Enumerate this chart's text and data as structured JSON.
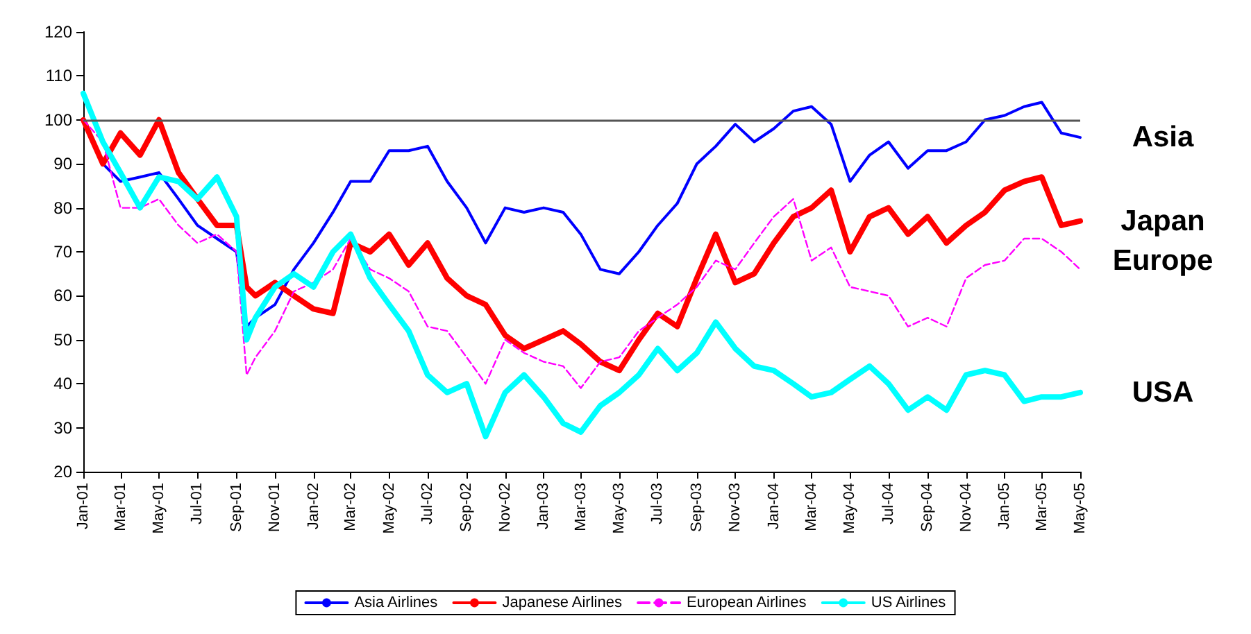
{
  "chart_data": {
    "type": "line",
    "x": [
      "2001-01",
      "2001-02",
      "2001-03",
      "2001-04",
      "2001-05",
      "2001-06",
      "2001-07",
      "2001-08",
      "2001-09",
      "2001-09-17",
      "2001-10",
      "2001-11",
      "2001-12",
      "2002-01",
      "2002-02",
      "2002-03",
      "2002-04",
      "2002-05",
      "2002-06",
      "2002-07",
      "2002-08",
      "2002-09",
      "2002-10",
      "2002-11",
      "2002-12",
      "2003-01",
      "2003-02",
      "2003-03",
      "2003-04",
      "2003-05",
      "2003-06",
      "2003-07",
      "2003-08",
      "2003-09",
      "2003-10",
      "2003-11",
      "2003-12",
      "2004-01",
      "2004-02",
      "2004-03",
      "2004-04",
      "2004-05",
      "2004-06",
      "2004-07",
      "2004-08",
      "2004-09",
      "2004-10",
      "2004-11",
      "2004-12",
      "2005-01",
      "2005-02",
      "2005-03",
      "2005-04",
      "2005-05"
    ],
    "series": [
      {
        "name": "Asia Airlines",
        "color": "#0000ff",
        "values": [
          100,
          90,
          86,
          87,
          88,
          82,
          76,
          73,
          70,
          53,
          55,
          58,
          66,
          72,
          79,
          86,
          86,
          93,
          93,
          94,
          86,
          80,
          72,
          80,
          79,
          80,
          79,
          74,
          66,
          65,
          70,
          76,
          81,
          90,
          94,
          99,
          95,
          98,
          102,
          103,
          99,
          86,
          92,
          95,
          89,
          93,
          93,
          95,
          100,
          101,
          103,
          104,
          97,
          96
        ]
      },
      {
        "name": "Japanese Airlines",
        "color": "#ff0000",
        "values": [
          100,
          90,
          97,
          92,
          100,
          88,
          82,
          76,
          76,
          62,
          60,
          63,
          60,
          57,
          56,
          72,
          70,
          74,
          67,
          72,
          64,
          60,
          58,
          51,
          48,
          50,
          52,
          49,
          45,
          43,
          50,
          56,
          53,
          64,
          74,
          63,
          65,
          72,
          78,
          80,
          84,
          70,
          78,
          80,
          74,
          78,
          72,
          76,
          79,
          84,
          86,
          87,
          76,
          77
        ]
      },
      {
        "name": "European Airlines",
        "color": "#ff00ff",
        "line_style": "dashed",
        "values": [
          100,
          95,
          80,
          80,
          82,
          76,
          72,
          74,
          70,
          42,
          46,
          52,
          61,
          63,
          66,
          73,
          66,
          64,
          61,
          53,
          52,
          46,
          40,
          50,
          47,
          45,
          44,
          39,
          45,
          46,
          52,
          55,
          58,
          62,
          68,
          66,
          72,
          78,
          82,
          68,
          71,
          62,
          61,
          60,
          53,
          55,
          53,
          64,
          67,
          68,
          73,
          73,
          70,
          66
        ]
      },
      {
        "name": "US Airlines",
        "color": "#00ffff",
        "values": [
          106,
          95,
          88,
          80,
          87,
          86,
          82,
          87,
          78,
          50,
          55,
          62,
          65,
          62,
          70,
          74,
          64,
          58,
          52,
          42,
          38,
          40,
          28,
          38,
          42,
          37,
          31,
          29,
          35,
          38,
          42,
          48,
          43,
          47,
          54,
          48,
          44,
          43,
          40,
          37,
          38,
          41,
          44,
          40,
          34,
          37,
          34,
          42,
          43,
          42,
          36,
          37,
          37,
          38
        ]
      }
    ],
    "xlim": [
      "2001-01",
      "2005-05"
    ],
    "xticks": [
      {
        "value": "2001-01",
        "label": "Jan-01"
      },
      {
        "value": "2001-03",
        "label": "Mar-01"
      },
      {
        "value": "2001-05",
        "label": "May-01"
      },
      {
        "value": "2001-07",
        "label": "Jul-01"
      },
      {
        "value": "2001-09",
        "label": "Sep-01"
      },
      {
        "value": "2001-11",
        "label": "Nov-01"
      },
      {
        "value": "2002-01",
        "label": "Jan-02"
      },
      {
        "value": "2002-03",
        "label": "Mar-02"
      },
      {
        "value": "2002-05",
        "label": "May-02"
      },
      {
        "value": "2002-07",
        "label": "Jul-02"
      },
      {
        "value": "2002-09",
        "label": "Sep-02"
      },
      {
        "value": "2002-11",
        "label": "Nov-02"
      },
      {
        "value": "2003-01",
        "label": "Jan-03"
      },
      {
        "value": "2003-03",
        "label": "Mar-03"
      },
      {
        "value": "2003-05",
        "label": "May-03"
      },
      {
        "value": "2003-07",
        "label": "Jul-03"
      },
      {
        "value": "2003-09",
        "label": "Sep-03"
      },
      {
        "value": "2003-11",
        "label": "Nov-03"
      },
      {
        "value": "2004-01",
        "label": "Jan-04"
      },
      {
        "value": "2004-03",
        "label": "Mar-04"
      },
      {
        "value": "2004-05",
        "label": "May-04"
      },
      {
        "value": "2004-07",
        "label": "Jul-04"
      },
      {
        "value": "2004-09",
        "label": "Sep-04"
      },
      {
        "value": "2004-11",
        "label": "Nov-04"
      },
      {
        "value": "2005-01",
        "label": "Jan-05"
      },
      {
        "value": "2005-03",
        "label": "Mar-05"
      },
      {
        "value": "2005-05",
        "label": "May-05"
      }
    ],
    "ylim": [
      20,
      120
    ],
    "yticks": [
      20,
      30,
      40,
      50,
      60,
      70,
      80,
      90,
      100,
      110,
      120
    ],
    "ref_lines": [
      {
        "axis": "y",
        "value": 100,
        "color": "#555555"
      }
    ],
    "annotations": [
      "Asia",
      "Japan",
      "Europe",
      "USA"
    ],
    "legend": "bottom",
    "marker": "none"
  }
}
